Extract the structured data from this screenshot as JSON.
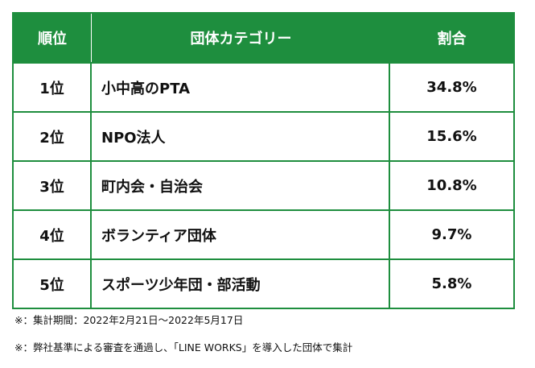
{
  "header": {
    "rank": "順位",
    "category": "団体カテゴリー",
    "share": "割合"
  },
  "rows": [
    {
      "rank": "1位",
      "category": "小中高のPTA",
      "share": "34.8%"
    },
    {
      "rank": "2位",
      "category": "NPO法人",
      "share": "15.6%"
    },
    {
      "rank": "3位",
      "category": "町内会・自治会",
      "share": "10.8%"
    },
    {
      "rank": "4位",
      "category": "ボランティア団体",
      "share": "9.7%"
    },
    {
      "rank": "5位",
      "category": "スポーツ少年団・部活動",
      "share": "5.8%"
    }
  ],
  "notes": [
    "※：集計期間：2022年2月21日～2022年5月17日",
    "※：弊社基準による審査を通過し、「LINE WORKS」を導入した団体で集計"
  ],
  "colors": {
    "accent": "#1e8e3e",
    "header_text": "#ffffff"
  },
  "chart_data": {
    "type": "table",
    "columns": [
      "順位",
      "団体カテゴリー",
      "割合"
    ],
    "rows": [
      [
        "1位",
        "小中高のPTA",
        "34.8%"
      ],
      [
        "2位",
        "NPO法人",
        "15.6%"
      ],
      [
        "3位",
        "町内会・自治会",
        "10.8%"
      ],
      [
        "4位",
        "ボランティア団体",
        "9.7%"
      ],
      [
        "5位",
        "スポーツ少年団・部活動",
        "5.8%"
      ]
    ]
  }
}
